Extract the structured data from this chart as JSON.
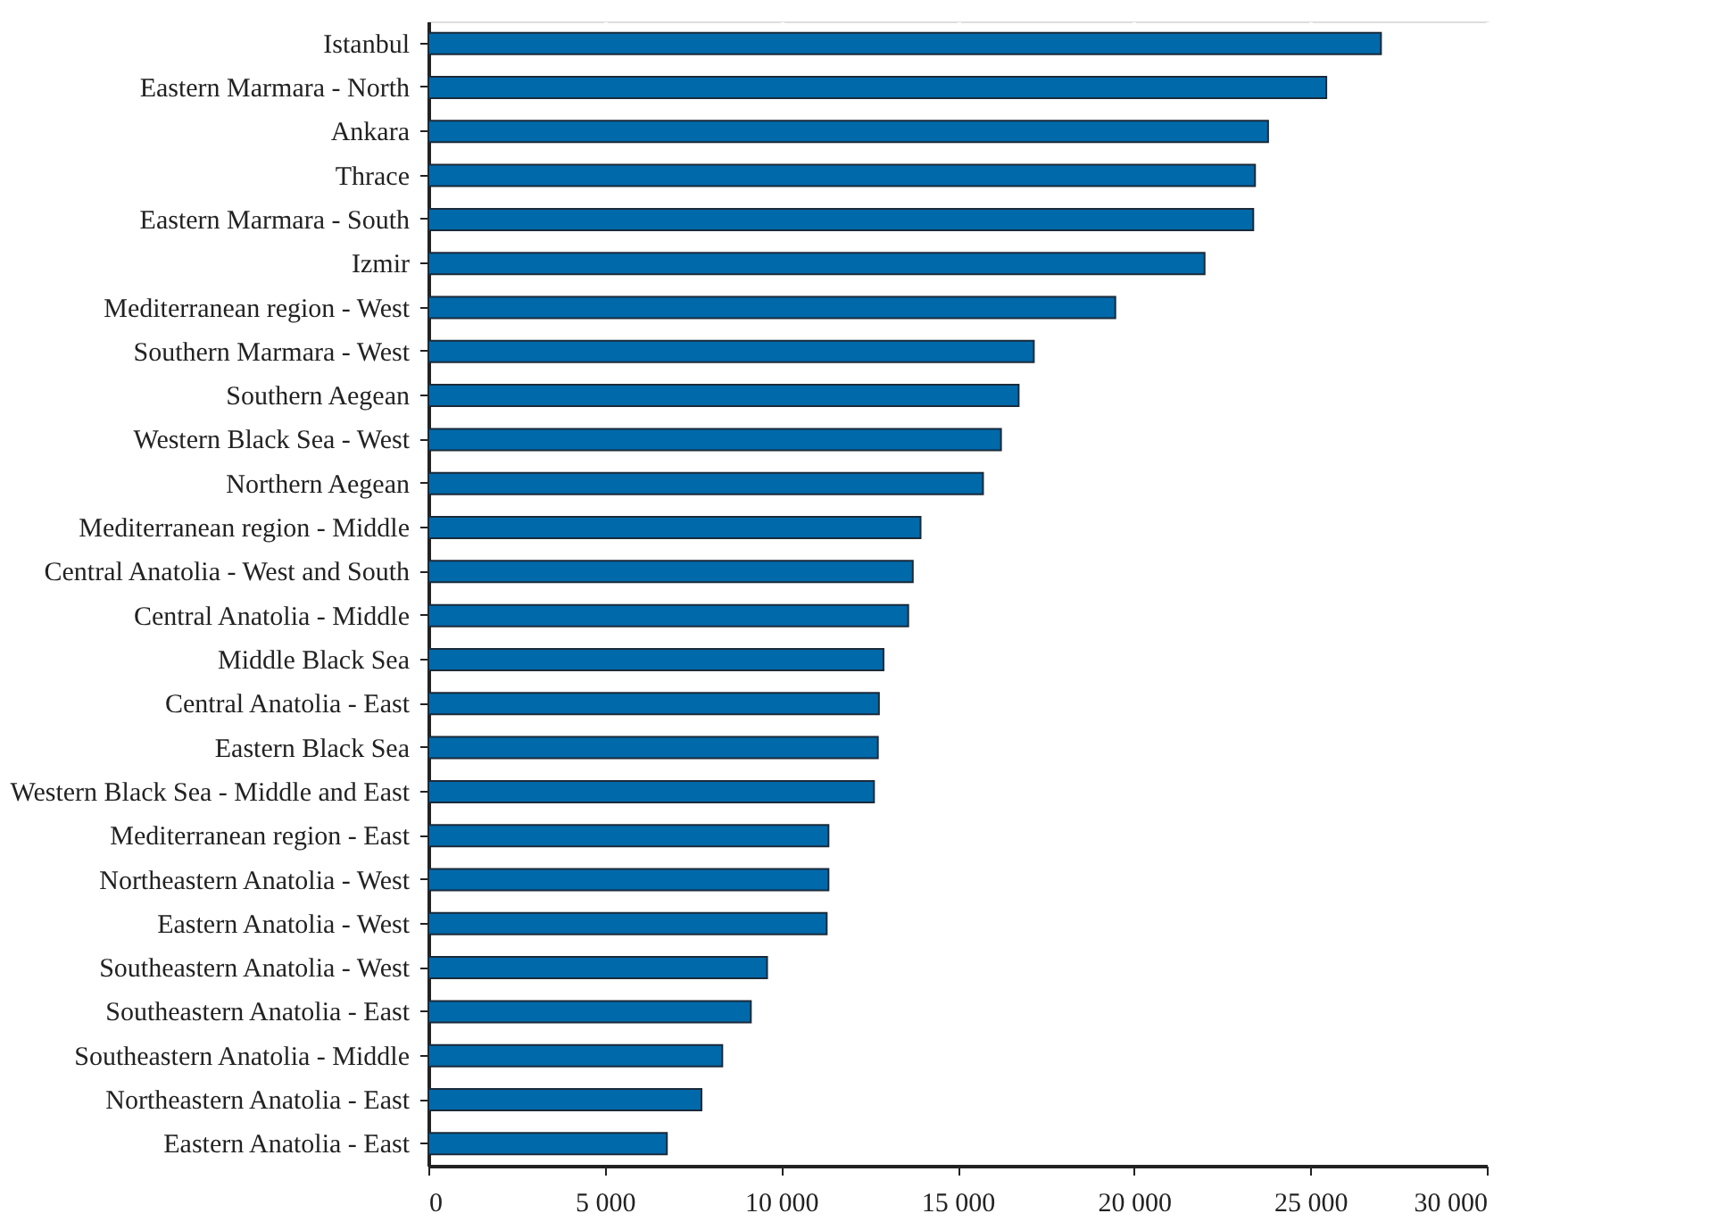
{
  "chart_data": {
    "type": "bar",
    "orientation": "horizontal",
    "categories": [
      "Istanbul",
      "Eastern Marmara - North",
      "Ankara",
      "Thrace",
      "Eastern Marmara - South",
      "Izmir",
      "Mediterranean region - West",
      "Southern Marmara - West",
      "Southern Aegean",
      "Western Black Sea - West",
      "Northern Aegean",
      "Mediterranean region - Middle",
      "Central Anatolia - West and South",
      "Central Anatolia - Middle",
      "Middle Black Sea",
      "Central Anatolia - East",
      "Eastern Black Sea",
      "Western Black Sea - Middle and East",
      "Mediterranean region - East",
      "Northeastern Anatolia - West",
      "Eastern Anatolia - West",
      "Southeastern Anatolia - West",
      "Southeastern Anatolia - East",
      "Southeastern Anatolia - Middle",
      "Northeastern Anatolia - East",
      "Eastern Anatolia - East"
    ],
    "values": [
      27000,
      25450,
      23800,
      23430,
      23380,
      22000,
      19470,
      17160,
      16730,
      16230,
      15720,
      13950,
      13730,
      13600,
      12900,
      12770,
      12740,
      12630,
      11340,
      11340,
      11290,
      9600,
      9140,
      8330,
      7740,
      6760
    ],
    "color": "#0069aa",
    "xlim": [
      0,
      30000
    ],
    "xticks": [
      0,
      {
        "value": 5000,
        "label": "5 000"
      },
      {
        "value": 10000,
        "label": "10 000"
      },
      {
        "value": 15000,
        "label": "15 000"
      },
      {
        "value": 20000,
        "label": "20 000"
      },
      {
        "value": 25000,
        "label": "25 000"
      },
      {
        "value": 30000,
        "label": "30 000"
      }
    ],
    "grid": "x"
  }
}
